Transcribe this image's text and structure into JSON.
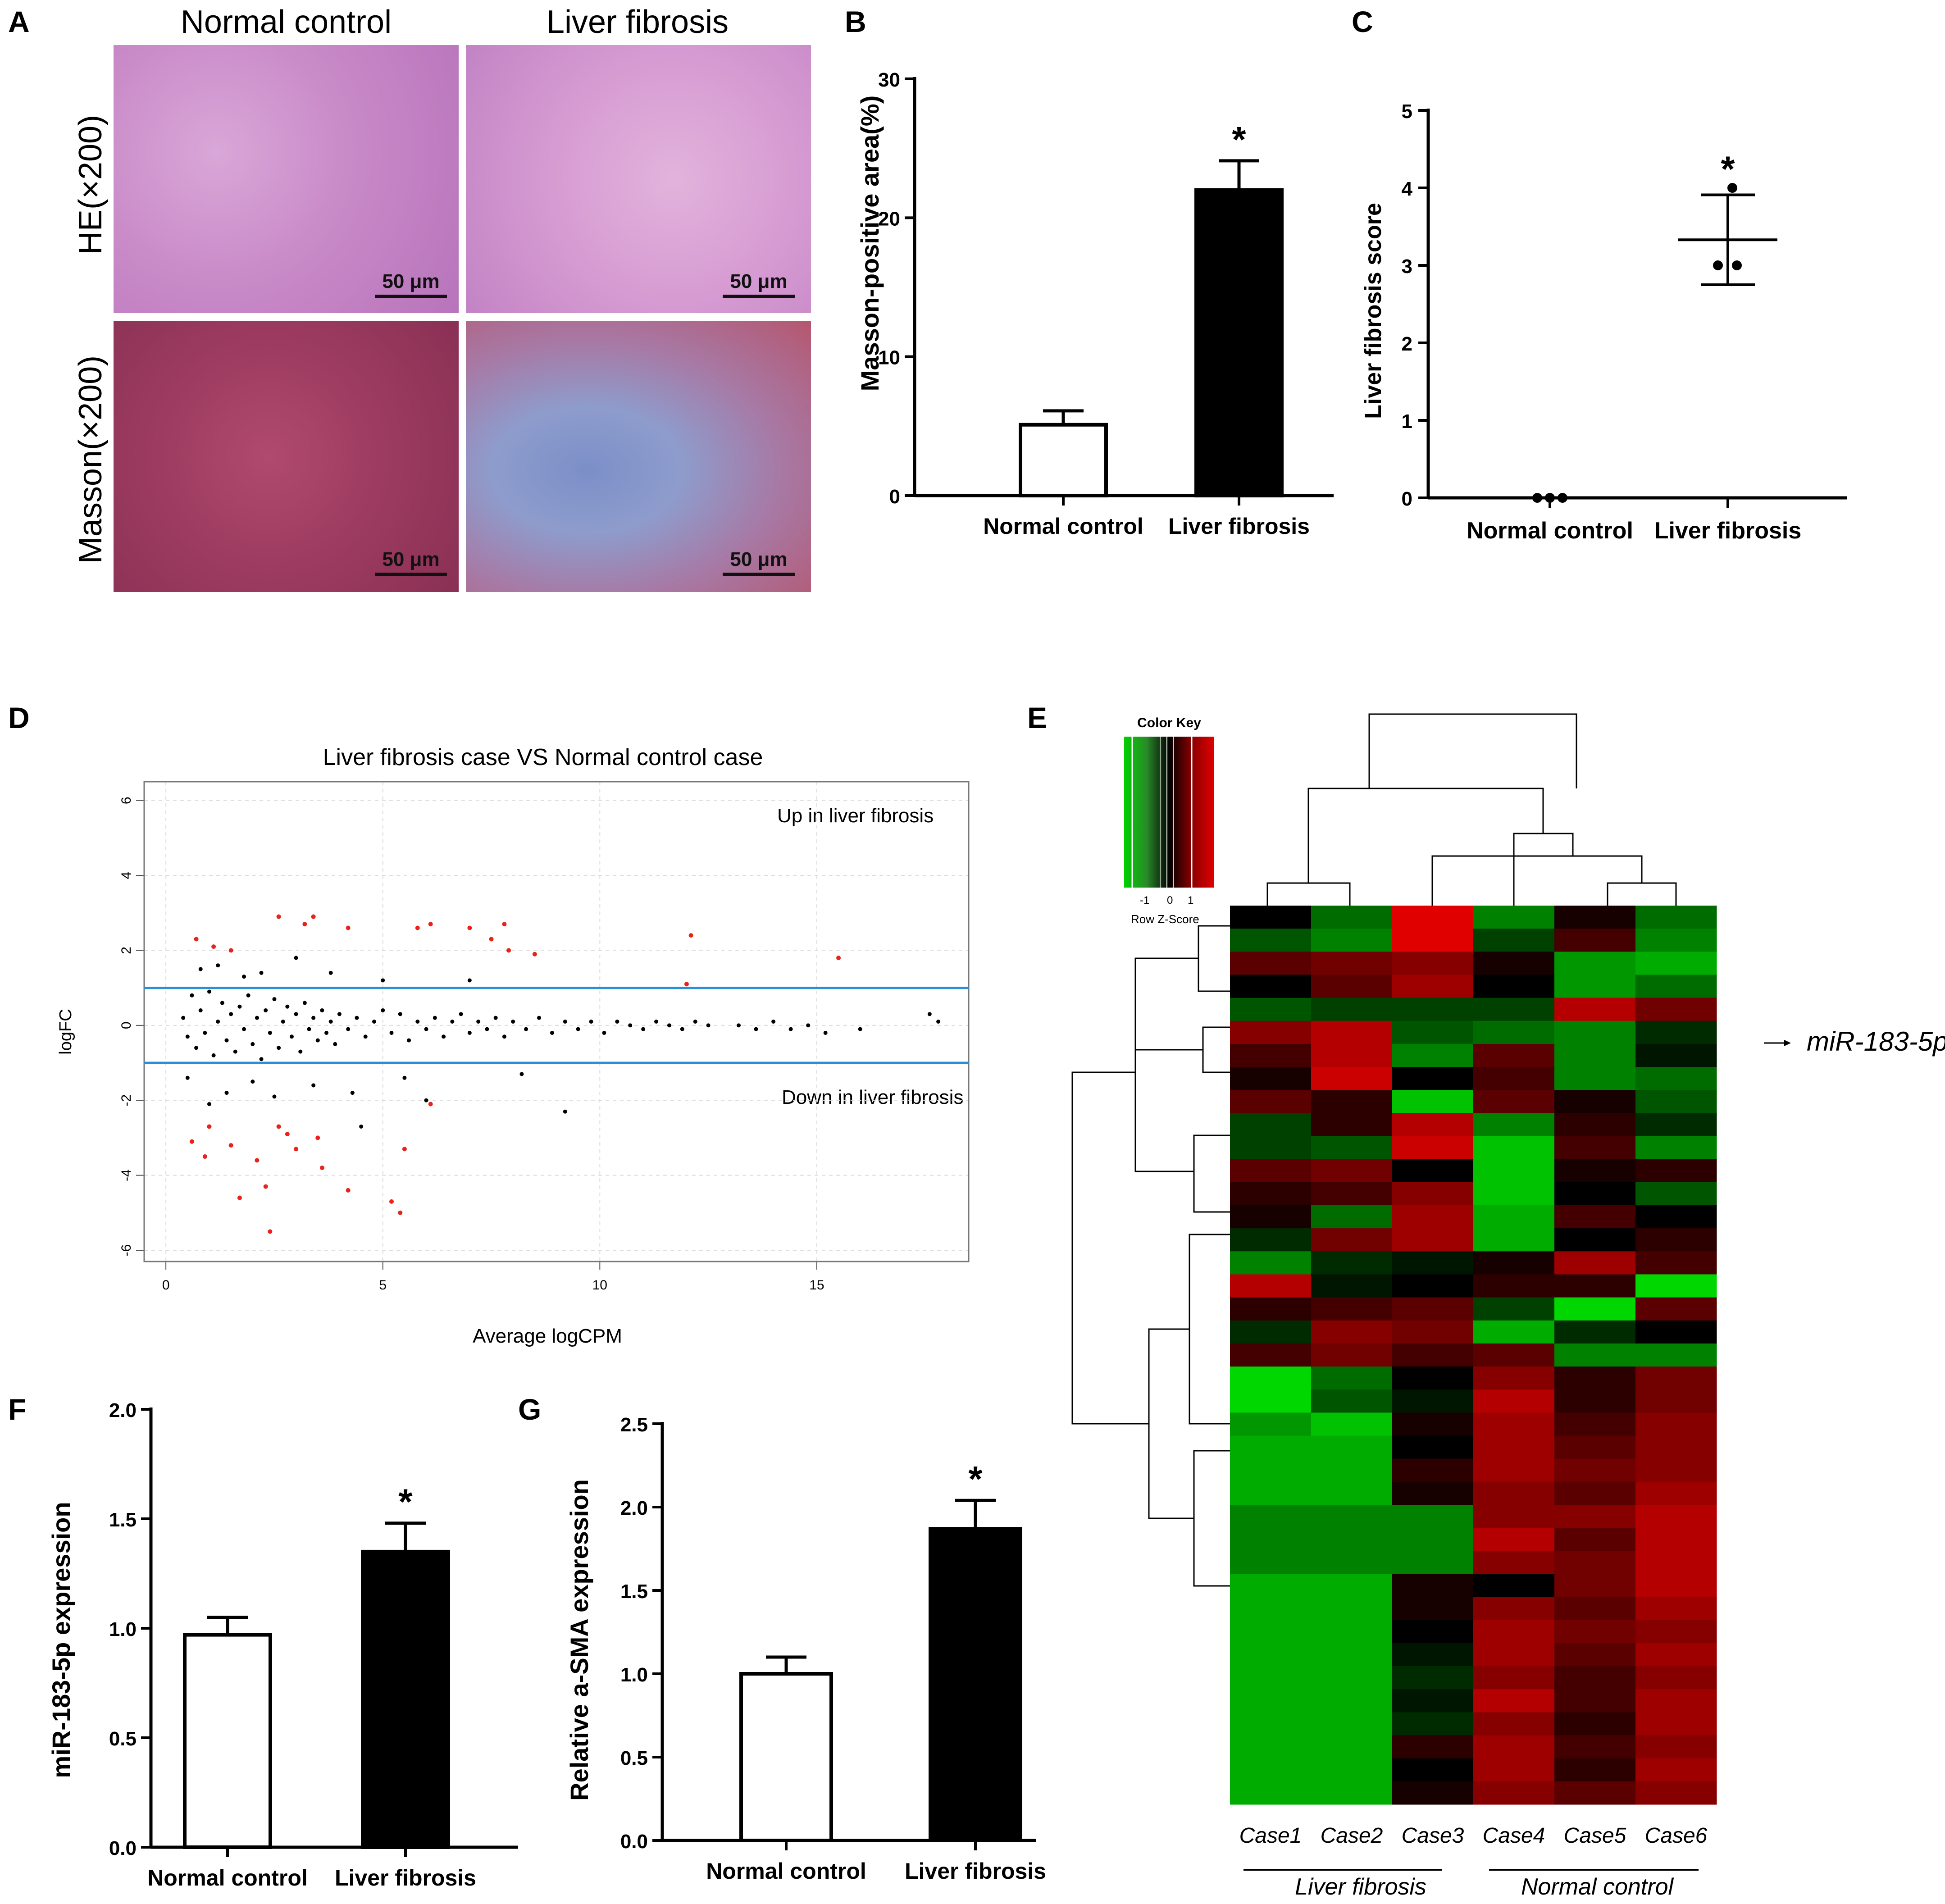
{
  "panels": {
    "A": {
      "label": "A",
      "col_titles": [
        "Normal control",
        "Liver fibrosis"
      ],
      "row_titles": [
        "HE(×200)",
        "Masson(×200)"
      ],
      "scale_bar": "50 μm"
    },
    "B": {
      "label": "B"
    },
    "C": {
      "label": "C"
    },
    "D": {
      "label": "D",
      "annotation_up": "Up in liver fibrosis",
      "annotation_down": "Down in liver fibrosis"
    },
    "E": {
      "label": "E",
      "color_key_title": "Color Key",
      "color_key_ticks": [
        "-1",
        "0",
        "1"
      ],
      "color_key_xlabel": "Row Z-Score",
      "highlight_label": "miR-183-5p",
      "cases": [
        "Case1",
        "Case2",
        "Case3",
        "Case4",
        "Case5",
        "Case6"
      ],
      "groups": [
        "Liver fibrosis",
        "Normal control"
      ]
    },
    "F": {
      "label": "F"
    },
    "G": {
      "label": "G"
    }
  },
  "colors": {
    "red_point": "#e8231c",
    "blue_line": "#2a8fd6",
    "bar_fill": "#000000",
    "bar_open": "#ffffff",
    "hm_green": "#00c800",
    "hm_red": "#d40000"
  },
  "chart_data": [
    {
      "id": "B",
      "type": "bar",
      "categories": [
        "Normal control",
        "Liver fibrosis"
      ],
      "values": [
        5.1,
        22.0
      ],
      "errors": [
        1.0,
        2.1
      ],
      "fills": [
        "#ffffff",
        "#000000"
      ],
      "significance": [
        "",
        "*"
      ],
      "ylabel": "Masson-positive area(%)",
      "ylim": [
        0,
        30
      ],
      "yticks": [
        0,
        10,
        20,
        30
      ]
    },
    {
      "id": "C",
      "type": "scatter",
      "categories": [
        "Normal control",
        "Liver fibrosis"
      ],
      "points": [
        [
          0,
          0,
          0
        ],
        [
          4,
          3,
          3
        ]
      ],
      "means": [
        0,
        3.33
      ],
      "sd": [
        0,
        0.58
      ],
      "significance": [
        "",
        "*"
      ],
      "ylabel": "Liver fibrosis score",
      "ylim": [
        0,
        5
      ],
      "yticks": [
        0,
        1,
        2,
        3,
        4,
        5
      ]
    },
    {
      "id": "D",
      "type": "scatter",
      "title": "Liver fibrosis case VS Normal control case",
      "xlabel": "Average logCPM",
      "ylabel": "logFC",
      "xlim": [
        -0.5,
        18.5
      ],
      "ylim": [
        -6.3,
        6.5
      ],
      "xticks": [
        0,
        5,
        10,
        15
      ],
      "yticks": [
        -6,
        -4,
        -2,
        0,
        2,
        4,
        6
      ],
      "thresholds": [
        1,
        -1
      ],
      "points": {
        "significant_up": [
          [
            0.7,
            2.3
          ],
          [
            1.1,
            2.1
          ],
          [
            1.5,
            2.0
          ],
          [
            2.6,
            2.9
          ],
          [
            3.2,
            2.7
          ],
          [
            3.4,
            2.9
          ],
          [
            4.2,
            2.6
          ],
          [
            5.8,
            2.6
          ],
          [
            6.1,
            2.7
          ],
          [
            7.0,
            2.6
          ],
          [
            7.5,
            2.3
          ],
          [
            7.8,
            2.7
          ],
          [
            7.9,
            2.0
          ],
          [
            8.5,
            1.9
          ],
          [
            12.1,
            2.4
          ],
          [
            12.0,
            1.1
          ],
          [
            15.5,
            1.8
          ]
        ],
        "significant_down": [
          [
            0.6,
            -3.1
          ],
          [
            0.9,
            -3.5
          ],
          [
            1.0,
            -2.7
          ],
          [
            1.5,
            -3.2
          ],
          [
            1.7,
            -4.6
          ],
          [
            2.1,
            -3.6
          ],
          [
            2.3,
            -4.3
          ],
          [
            2.4,
            -5.5
          ],
          [
            2.6,
            -2.7
          ],
          [
            2.8,
            -2.9
          ],
          [
            3.0,
            -3.3
          ],
          [
            3.5,
            -3.0
          ],
          [
            3.6,
            -3.8
          ],
          [
            4.2,
            -4.4
          ],
          [
            5.2,
            -4.7
          ],
          [
            5.5,
            -3.3
          ],
          [
            5.4,
            -5.0
          ],
          [
            6.1,
            -2.1
          ]
        ],
        "not_significant": [
          [
            0.4,
            0.2
          ],
          [
            0.5,
            -0.3
          ],
          [
            0.6,
            0.8
          ],
          [
            0.7,
            -0.6
          ],
          [
            0.8,
            0.4
          ],
          [
            0.9,
            -0.2
          ],
          [
            1.0,
            0.9
          ],
          [
            1.1,
            -0.8
          ],
          [
            1.2,
            0.1
          ],
          [
            1.3,
            0.6
          ],
          [
            1.4,
            -0.4
          ],
          [
            1.5,
            0.3
          ],
          [
            1.6,
            -0.7
          ],
          [
            1.7,
            0.5
          ],
          [
            1.8,
            -0.1
          ],
          [
            1.9,
            0.8
          ],
          [
            2.0,
            -0.5
          ],
          [
            2.1,
            0.2
          ],
          [
            2.2,
            -0.9
          ],
          [
            2.3,
            0.4
          ],
          [
            2.4,
            -0.2
          ],
          [
            2.5,
            0.7
          ],
          [
            2.6,
            -0.6
          ],
          [
            2.7,
            0.1
          ],
          [
            2.8,
            0.5
          ],
          [
            2.9,
            -0.3
          ],
          [
            3.0,
            0.3
          ],
          [
            3.1,
            -0.7
          ],
          [
            3.2,
            0.6
          ],
          [
            3.3,
            -0.1
          ],
          [
            3.4,
            0.2
          ],
          [
            3.5,
            -0.4
          ],
          [
            3.6,
            0.4
          ],
          [
            3.7,
            -0.2
          ],
          [
            3.8,
            0.1
          ],
          [
            3.9,
            -0.5
          ],
          [
            4.0,
            0.3
          ],
          [
            4.2,
            -0.1
          ],
          [
            4.4,
            0.2
          ],
          [
            4.6,
            -0.3
          ],
          [
            4.8,
            0.1
          ],
          [
            5.0,
            0.4
          ],
          [
            5.2,
            -0.2
          ],
          [
            5.4,
            0.3
          ],
          [
            5.6,
            -0.4
          ],
          [
            5.8,
            0.1
          ],
          [
            6.0,
            -0.1
          ],
          [
            6.2,
            0.2
          ],
          [
            6.4,
            -0.3
          ],
          [
            6.6,
            0.1
          ],
          [
            6.8,
            0.3
          ],
          [
            7.0,
            -0.2
          ],
          [
            7.2,
            0.1
          ],
          [
            7.4,
            -0.1
          ],
          [
            7.6,
            0.2
          ],
          [
            7.8,
            -0.3
          ],
          [
            8.0,
            0.1
          ],
          [
            8.3,
            -0.1
          ],
          [
            8.6,
            0.2
          ],
          [
            8.9,
            -0.2
          ],
          [
            9.2,
            0.1
          ],
          [
            9.5,
            -0.1
          ],
          [
            9.8,
            0.1
          ],
          [
            10.1,
            -0.2
          ],
          [
            10.4,
            0.1
          ],
          [
            10.7,
            0.0
          ],
          [
            11.0,
            -0.1
          ],
          [
            11.3,
            0.1
          ],
          [
            11.6,
            0.0
          ],
          [
            11.9,
            -0.1
          ],
          [
            12.2,
            0.1
          ],
          [
            12.5,
            0.0
          ],
          [
            13.2,
            0.0
          ],
          [
            13.6,
            -0.1
          ],
          [
            14.0,
            0.1
          ],
          [
            14.4,
            -0.1
          ],
          [
            14.8,
            0.0
          ],
          [
            15.2,
            -0.2
          ],
          [
            16.0,
            -0.1
          ],
          [
            17.6,
            0.3
          ],
          [
            17.8,
            0.1
          ],
          [
            0.5,
            -1.4
          ],
          [
            0.8,
            1.5
          ],
          [
            1.0,
            -2.1
          ],
          [
            1.2,
            1.6
          ],
          [
            1.4,
            -1.8
          ],
          [
            1.8,
            1.3
          ],
          [
            2.0,
            -1.5
          ],
          [
            2.2,
            1.4
          ],
          [
            2.5,
            -1.9
          ],
          [
            3.0,
            1.8
          ],
          [
            3.4,
            -1.6
          ],
          [
            3.8,
            1.4
          ],
          [
            4.3,
            -1.8
          ],
          [
            5.0,
            1.2
          ],
          [
            5.5,
            -1.4
          ],
          [
            6.0,
            -2.0
          ],
          [
            7.0,
            1.2
          ],
          [
            8.2,
            -1.3
          ],
          [
            9.2,
            -2.3
          ],
          [
            4.5,
            -2.7
          ]
        ]
      }
    },
    {
      "id": "E",
      "type": "heatmap",
      "columns": [
        "Case1",
        "Case2",
        "Case3",
        "Case4",
        "Case5",
        "Case6"
      ],
      "color_scale": {
        "min": -1,
        "max": 1,
        "low": "#00c800",
        "mid": "#000000",
        "high": "#d40000"
      },
      "values": [
        [
          0.0,
          -0.5,
          1.0,
          -0.6,
          0.1,
          -0.5
        ],
        [
          -0.4,
          -0.6,
          1.0,
          -0.3,
          0.3,
          -0.6
        ],
        [
          0.4,
          0.5,
          0.6,
          0.1,
          -0.7,
          -0.8
        ],
        [
          0.0,
          0.4,
          0.7,
          0.0,
          -0.7,
          -0.5
        ],
        [
          -0.4,
          -0.3,
          -0.3,
          -0.3,
          0.8,
          0.5
        ],
        [
          0.6,
          0.8,
          -0.4,
          -0.5,
          -0.6,
          -0.2
        ],
        [
          0.3,
          0.8,
          -0.6,
          0.4,
          -0.6,
          -0.1
        ],
        [
          0.1,
          0.9,
          0.0,
          0.3,
          -0.6,
          -0.5
        ],
        [
          0.4,
          0.2,
          -0.9,
          0.4,
          0.1,
          -0.4
        ],
        [
          -0.3,
          0.2,
          0.8,
          -0.6,
          0.2,
          -0.2
        ],
        [
          -0.3,
          -0.4,
          0.9,
          -0.9,
          0.3,
          -0.6
        ],
        [
          0.4,
          0.5,
          0.0,
          -0.9,
          0.1,
          0.2
        ],
        [
          0.2,
          0.3,
          0.6,
          -0.9,
          0.0,
          -0.4
        ],
        [
          0.1,
          -0.5,
          0.7,
          -0.8,
          0.3,
          0.0
        ],
        [
          -0.2,
          0.5,
          0.7,
          -0.8,
          0.0,
          0.2
        ],
        [
          -0.6,
          -0.2,
          -0.1,
          0.1,
          0.7,
          0.3
        ],
        [
          0.8,
          -0.1,
          0.0,
          0.2,
          0.2,
          -1.0
        ],
        [
          0.2,
          0.3,
          0.4,
          -0.3,
          -1.0,
          0.4
        ],
        [
          -0.2,
          0.6,
          0.5,
          -0.8,
          -0.2,
          0.0
        ],
        [
          0.3,
          0.5,
          0.3,
          0.4,
          -0.6,
          -0.6
        ],
        [
          -1.0,
          -0.5,
          0.0,
          0.6,
          0.2,
          0.5
        ],
        [
          -1.0,
          -0.4,
          -0.1,
          0.8,
          0.2,
          0.5
        ],
        [
          -0.7,
          -0.9,
          0.1,
          0.7,
          0.3,
          0.6
        ],
        [
          -0.8,
          -0.8,
          0.0,
          0.7,
          0.4,
          0.6
        ],
        [
          -0.8,
          -0.8,
          0.2,
          0.7,
          0.5,
          0.6
        ],
        [
          -0.8,
          -0.8,
          0.1,
          0.6,
          0.4,
          0.7
        ],
        [
          -0.6,
          -0.6,
          -0.6,
          0.6,
          0.6,
          0.8
        ],
        [
          -0.6,
          -0.6,
          -0.6,
          0.8,
          0.4,
          0.8
        ],
        [
          -0.6,
          -0.6,
          -0.6,
          0.6,
          0.5,
          0.8
        ],
        [
          -0.8,
          -0.8,
          0.1,
          0.0,
          0.5,
          0.8
        ],
        [
          -0.8,
          -0.8,
          0.1,
          0.6,
          0.4,
          0.7
        ],
        [
          -0.8,
          -0.8,
          0.0,
          0.7,
          0.5,
          0.6
        ],
        [
          -0.8,
          -0.8,
          -0.1,
          0.7,
          0.4,
          0.7
        ],
        [
          -0.8,
          -0.8,
          -0.2,
          0.6,
          0.3,
          0.6
        ],
        [
          -0.8,
          -0.8,
          -0.1,
          0.8,
          0.3,
          0.7
        ],
        [
          -0.8,
          -0.8,
          -0.2,
          0.6,
          0.2,
          0.7
        ],
        [
          -0.8,
          -0.8,
          0.2,
          0.7,
          0.3,
          0.6
        ],
        [
          -0.8,
          -0.8,
          0.0,
          0.7,
          0.2,
          0.7
        ],
        [
          -0.8,
          -0.8,
          0.1,
          0.6,
          0.4,
          0.6
        ]
      ],
      "highlight_row": 2
    },
    {
      "id": "F",
      "type": "bar",
      "categories": [
        "Normal control",
        "Liver fibrosis"
      ],
      "values": [
        0.97,
        1.35
      ],
      "errors": [
        0.08,
        0.13
      ],
      "fills": [
        "#ffffff",
        "#000000"
      ],
      "significance": [
        "",
        "*"
      ],
      "ylabel": "miR-183-5p expression",
      "ylim": [
        0,
        2.0
      ],
      "yticks": [
        "0.0",
        "0.5",
        "1.0",
        "1.5",
        "2.0"
      ]
    },
    {
      "id": "G",
      "type": "bar",
      "categories": [
        "Normal control",
        "Liver fibrosis"
      ],
      "values": [
        1.0,
        1.87
      ],
      "errors": [
        0.1,
        0.17
      ],
      "fills": [
        "#ffffff",
        "#000000"
      ],
      "significance": [
        "",
        "*"
      ],
      "ylabel": "Relative a-SMA expression",
      "ylim": [
        0,
        2.5
      ],
      "yticks": [
        "0.0",
        "0.5",
        "1.0",
        "1.5",
        "2.0",
        "2.5"
      ]
    }
  ]
}
